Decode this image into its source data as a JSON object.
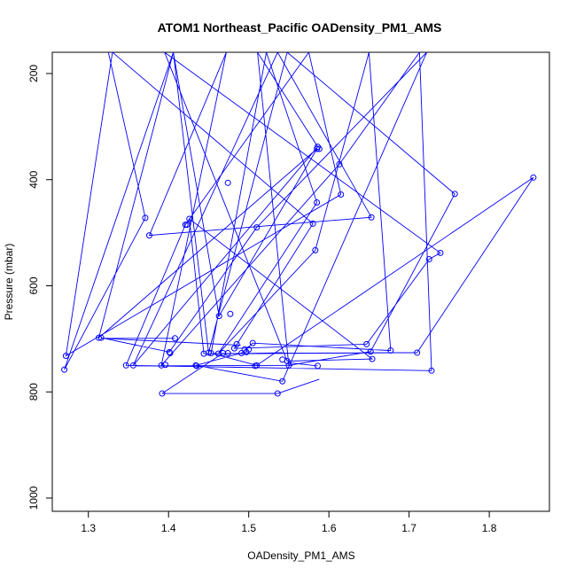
{
  "chart_data": {
    "type": "line",
    "title": "ATOM1 Northeast_Pacific OADensity_PM1_AMS",
    "xlabel": "OADensity_PM1_AMS",
    "ylabel": "Pressure (mbar)",
    "xlim": [
      1.255,
      1.875
    ],
    "ylim": [
      1025,
      160
    ],
    "y_reversed": true,
    "x_ticks": [
      1.3,
      1.4,
      1.5,
      1.6,
      1.7,
      1.8
    ],
    "x_tick_labels": [
      "1.3",
      "1.4",
      "1.5",
      "1.6",
      "1.7",
      "1.8"
    ],
    "y_ticks": [
      200,
      400,
      600,
      800,
      1000
    ],
    "y_tick_labels": [
      "200",
      "400",
      "600",
      "800",
      "1000"
    ],
    "grid": false,
    "series_color": "#0000ff",
    "series": [
      {
        "name": "",
        "x": [
          1.325,
          1.371,
          1.27,
          1.406,
          1.463,
          1.585,
          1.313,
          1.406,
          1.45,
          1.548,
          1.757,
          1.652,
          1.55,
          1.511,
          1.586,
          1.356,
          1.536,
          1.653,
          1.376,
          1.472,
          1.391,
          1.613,
          1.713,
          1.728,
          1.347,
          1.421,
          1.575,
          1.615,
          1.272,
          1.33,
          1.58,
          1.482,
          1.647,
          1.725,
          1.739,
          1.395,
          1.548,
          1.654,
          1.426,
          1.444,
          1.71,
          1.855,
          1.51,
          1.453,
          1.522,
          1.585,
          1.462,
          1.583,
          1.65,
          1.677,
          1.505,
          1.491,
          1.434,
          1.542,
          1.722,
          1.51,
          1.401,
          1.316
        ],
        "y": [
          160,
          472,
          758,
          160,
          657,
          342,
          698,
          160,
          726,
          160,
          427,
          724,
          750,
          160,
          338,
          750,
          160,
          471,
          505,
          160,
          750,
          371,
          160,
          760,
          750,
          485,
          160,
          428,
          732,
          160,
          483,
          718,
          710,
          550,
          538,
          160,
          742,
          738,
          474,
          728,
          726,
          396,
          750,
          727,
          160,
          443,
          728,
          533,
          160,
          722,
          708,
          727,
          750,
          780,
          160,
          490,
          725,
          698
        ]
      }
    ],
    "segments": [
      {
        "x0": 1.49,
        "y0": 728,
        "x1": 1.542,
        "y1": 726
      },
      {
        "x0": 1.466,
        "y0": 728,
        "x1": 1.71,
        "y1": 726
      },
      {
        "x0": 1.36,
        "y0": 751,
        "x1": 1.555,
        "y1": 750
      },
      {
        "x0": 1.55,
        "y0": 745,
        "x1": 1.586,
        "y1": 751
      },
      {
        "x0": 1.392,
        "y0": 803,
        "x1": 1.536,
        "y1": 803
      },
      {
        "x0": 1.536,
        "y0": 803,
        "x1": 1.588,
        "y1": 776
      },
      {
        "x0": 1.392,
        "y0": 803,
        "x1": 1.468,
        "y1": 727
      },
      {
        "x0": 1.318,
        "y0": 699,
        "x1": 1.408,
        "y1": 699
      },
      {
        "x0": 1.316,
        "y0": 699,
        "x1": 1.49,
        "y1": 712
      }
    ],
    "extra_points": [
      {
        "x": 1.408,
        "y": 699
      },
      {
        "x": 1.485,
        "y": 710
      },
      {
        "x": 1.477,
        "y": 653
      },
      {
        "x": 1.474,
        "y": 406
      },
      {
        "x": 1.497,
        "y": 725
      },
      {
        "x": 1.402,
        "y": 727
      },
      {
        "x": 1.5,
        "y": 720
      },
      {
        "x": 1.474,
        "y": 727
      },
      {
        "x": 1.495,
        "y": 720
      },
      {
        "x": 1.435,
        "y": 751
      },
      {
        "x": 1.396,
        "y": 749
      },
      {
        "x": 1.392,
        "y": 803
      },
      {
        "x": 1.536,
        "y": 803
      },
      {
        "x": 1.586,
        "y": 751
      },
      {
        "x": 1.542,
        "y": 739
      },
      {
        "x": 1.508,
        "y": 751
      },
      {
        "x": 1.423,
        "y": 485
      },
      {
        "x": 1.468,
        "y": 727
      },
      {
        "x": 1.588,
        "y": 342
      }
    ]
  }
}
